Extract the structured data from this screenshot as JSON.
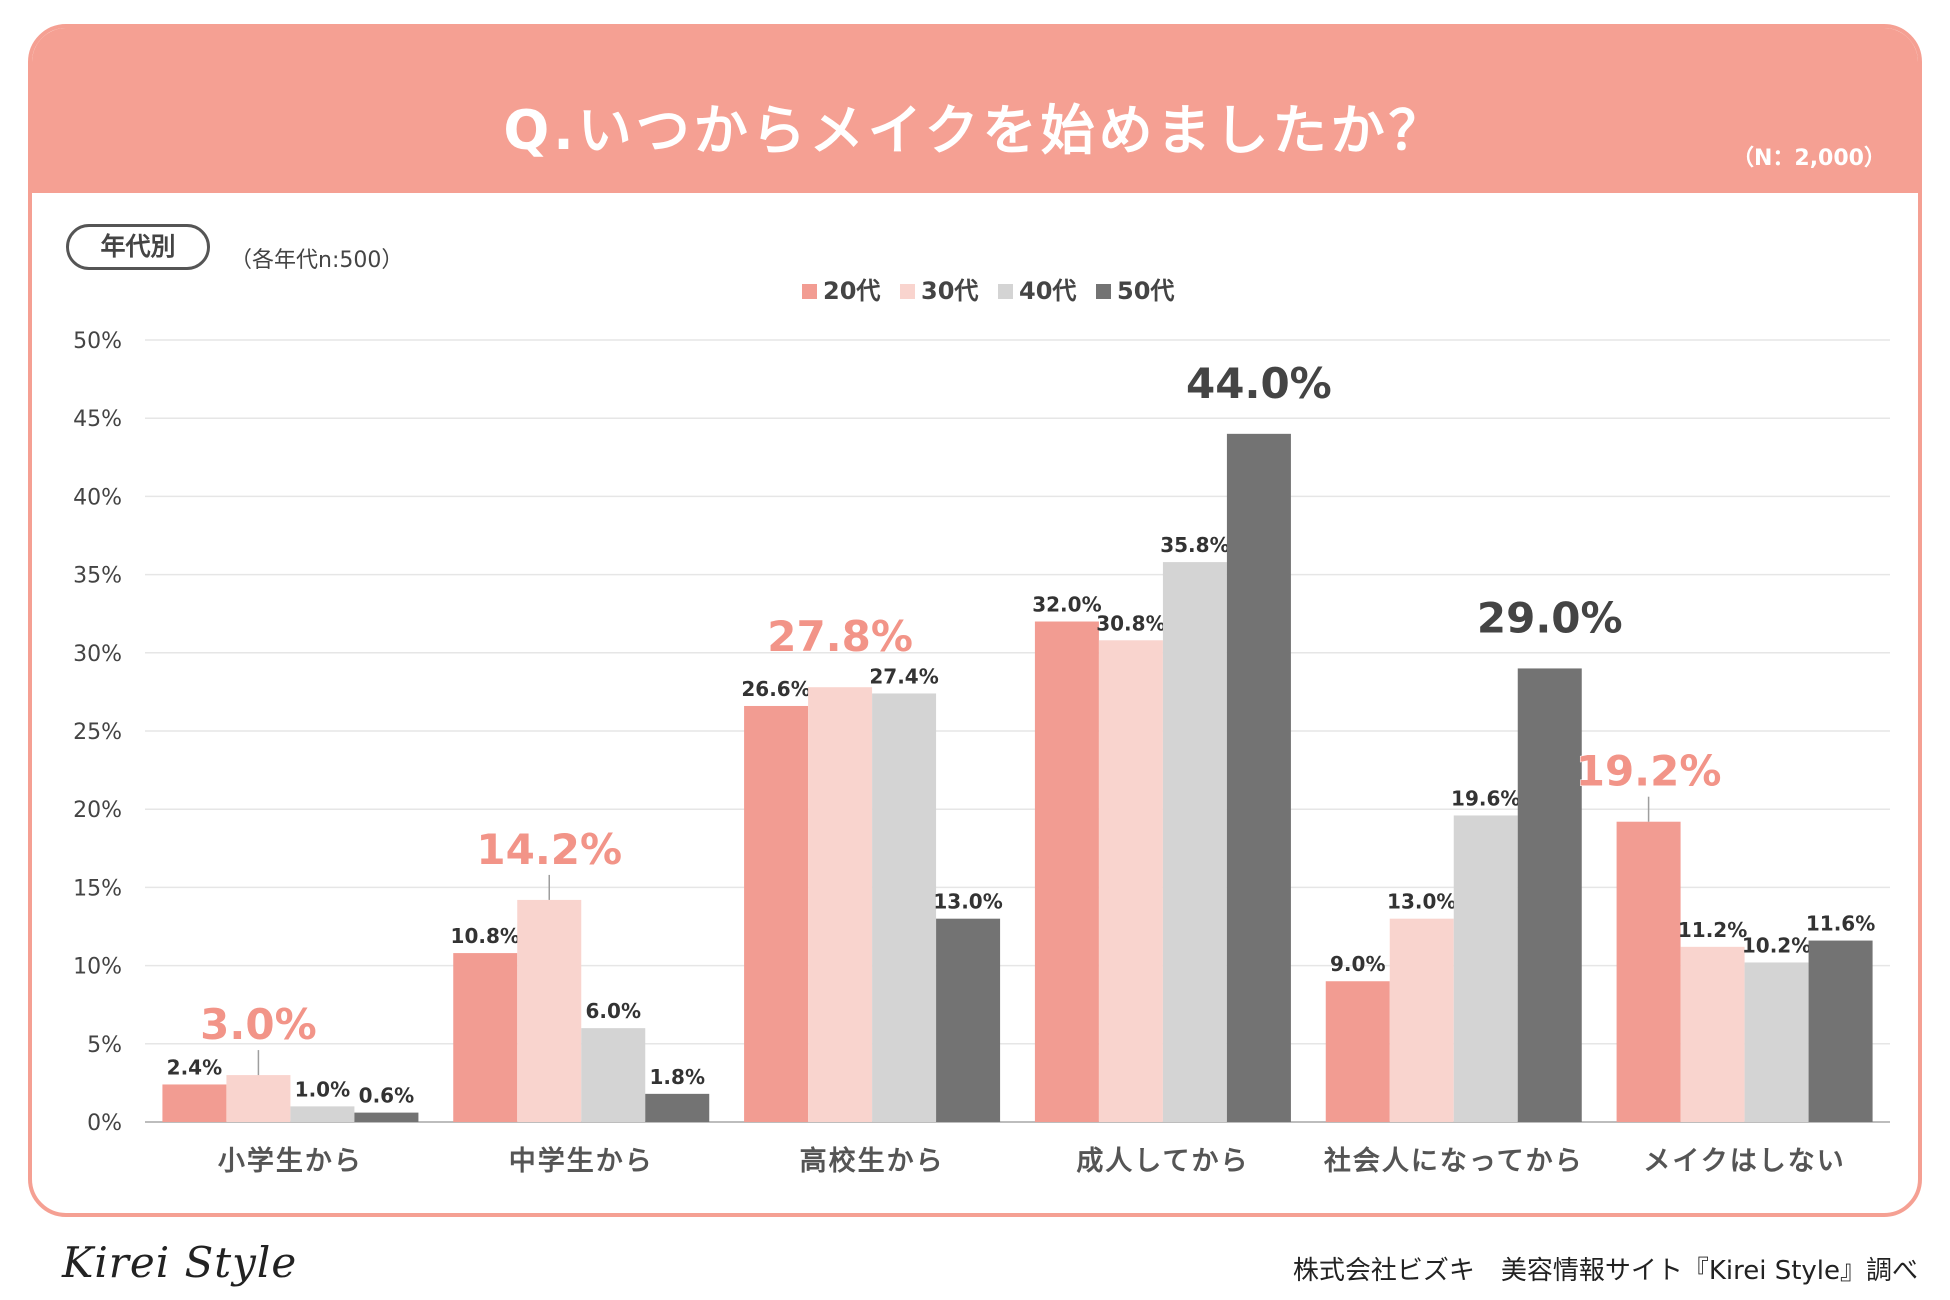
{
  "header": {
    "title": "Q.いつからメイクを始めましたか？",
    "sample_total": "（N：2,000）"
  },
  "group": {
    "label": "年代別",
    "note": "（各年代n:500）"
  },
  "colors": {
    "header_bg": "#f5a093",
    "highlight_pink": "#f29488",
    "highlight_dark": "#444444"
  },
  "chart_data": {
    "type": "bar",
    "title": "Q.いつからメイクを始めましたか？",
    "xlabel": "",
    "ylabel": "",
    "ylim": [
      0,
      50
    ],
    "yticks": [
      "0%",
      "5%",
      "10%",
      "15%",
      "20%",
      "25%",
      "30%",
      "35%",
      "40%",
      "45%",
      "50%"
    ],
    "grid": true,
    "legend_position": "top-center",
    "categories": [
      "小学生から",
      "中学生から",
      "高校生から",
      "成人してから",
      "社会人になってから",
      "メイクはしない"
    ],
    "series": [
      {
        "name": "20代",
        "color": "#f29c92",
        "values": [
          2.4,
          10.8,
          26.6,
          32.0,
          9.0,
          19.2
        ]
      },
      {
        "name": "30代",
        "color": "#f9d4ce",
        "values": [
          3.0,
          14.2,
          27.8,
          30.8,
          13.0,
          11.2
        ]
      },
      {
        "name": "40代",
        "color": "#d4d4d4",
        "values": [
          1.0,
          6.0,
          27.4,
          35.8,
          19.6,
          10.2
        ]
      },
      {
        "name": "50代",
        "color": "#737373",
        "values": [
          0.6,
          1.8,
          13.0,
          44.0,
          29.0,
          11.6
        ]
      }
    ],
    "labels": [
      [
        "2.4%",
        "3.0%",
        "1.0%",
        "0.6%"
      ],
      [
        "10.8%",
        "14.2%",
        "6.0%",
        "1.8%"
      ],
      [
        "26.6%",
        "27.8%",
        "27.4%",
        "13.0%"
      ],
      [
        "32.0%",
        "30.8%",
        "35.8%",
        "44.0%"
      ],
      [
        "9.0%",
        "13.0%",
        "19.6%",
        "29.0%"
      ],
      [
        "19.2%",
        "11.2%",
        "10.2%",
        "11.6%"
      ]
    ],
    "highlights": [
      {
        "category": 0,
        "series": 1,
        "style": "pink"
      },
      {
        "category": 1,
        "series": 1,
        "style": "pink"
      },
      {
        "category": 2,
        "series": 1,
        "style": "pink"
      },
      {
        "category": 3,
        "series": 3,
        "style": "dark"
      },
      {
        "category": 4,
        "series": 3,
        "style": "dark"
      },
      {
        "category": 5,
        "series": 0,
        "style": "pink"
      }
    ]
  },
  "footer": {
    "logo": "Kirei Style",
    "credit": "株式会社ビズキ　美容情報サイト『Kirei Style』調べ"
  }
}
